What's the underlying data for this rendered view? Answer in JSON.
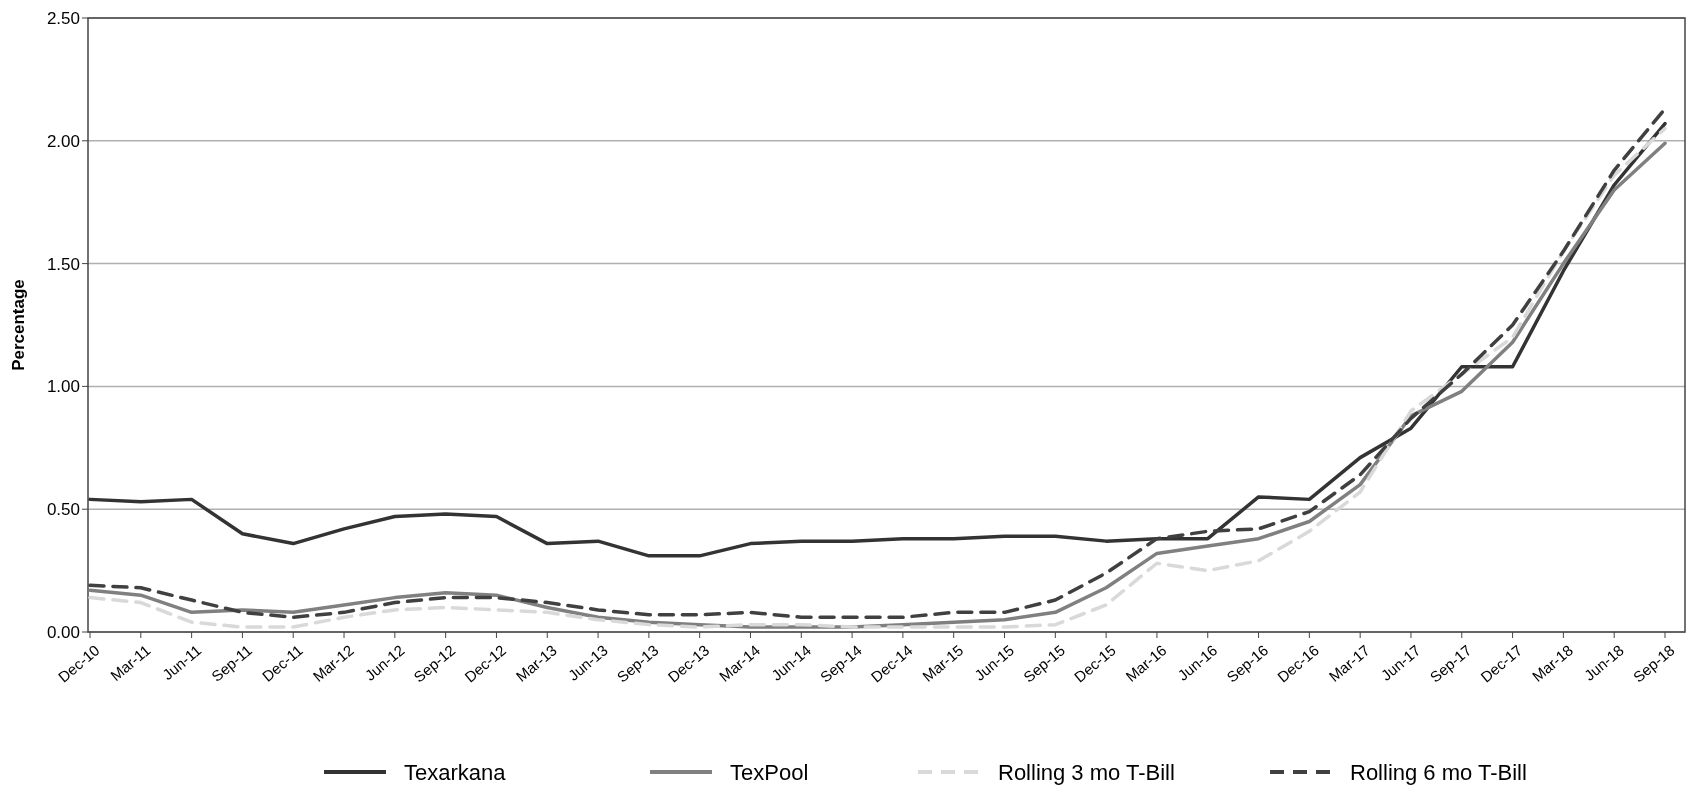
{
  "chart_data": {
    "type": "line",
    "ylabel": "Percentage",
    "categories": [
      "Dec-10",
      "Mar-11",
      "Jun-11",
      "Sep-11",
      "Dec-11",
      "Mar-12",
      "Jun-12",
      "Sep-12",
      "Dec-12",
      "Mar-13",
      "Jun-13",
      "Sep-13",
      "Dec-13",
      "Mar-14",
      "Jun-14",
      "Sep-14",
      "Dec-14",
      "Mar-15",
      "Jun-15",
      "Sep-15",
      "Dec-15",
      "Mar-16",
      "Jun-16",
      "Sep-16",
      "Dec-16",
      "Mar-17",
      "Jun-17",
      "Sep-17",
      "Dec-17",
      "Mar-18",
      "Jun-18",
      "Sep-18"
    ],
    "series": [
      {
        "name": "Texarkana",
        "color": "#333333",
        "line_style": "solid",
        "values": [
          0.54,
          0.53,
          0.54,
          0.4,
          0.36,
          0.42,
          0.47,
          0.48,
          0.47,
          0.36,
          0.37,
          0.31,
          0.31,
          0.36,
          0.37,
          0.37,
          0.38,
          0.38,
          0.39,
          0.39,
          0.37,
          0.38,
          0.38,
          0.55,
          0.54,
          0.71,
          0.83,
          1.08,
          1.08,
          1.47,
          1.82,
          2.07
        ]
      },
      {
        "name": "TexPool",
        "color": "#808080",
        "line_style": "solid",
        "values": [
          0.17,
          0.15,
          0.08,
          0.09,
          0.08,
          0.11,
          0.14,
          0.16,
          0.15,
          0.1,
          0.06,
          0.04,
          0.03,
          0.02,
          0.02,
          0.02,
          0.03,
          0.04,
          0.05,
          0.08,
          0.18,
          0.32,
          0.35,
          0.38,
          0.45,
          0.6,
          0.88,
          0.98,
          1.18,
          1.5,
          1.8,
          1.99
        ]
      },
      {
        "name": "Rolling 3 mo T-Bill",
        "color": "#d9d9d9",
        "line_style": "dashed",
        "values": [
          0.14,
          0.12,
          0.04,
          0.02,
          0.02,
          0.06,
          0.09,
          0.1,
          0.09,
          0.08,
          0.05,
          0.03,
          0.02,
          0.03,
          0.03,
          0.02,
          0.02,
          0.02,
          0.02,
          0.03,
          0.11,
          0.28,
          0.25,
          0.29,
          0.41,
          0.57,
          0.9,
          1.05,
          1.2,
          1.55,
          1.86,
          2.05
        ]
      },
      {
        "name": "Rolling 6 mo T-Bill",
        "color": "#404040",
        "line_style": "dashed",
        "values": [
          0.19,
          0.18,
          0.13,
          0.08,
          0.06,
          0.08,
          0.12,
          0.14,
          0.14,
          0.12,
          0.09,
          0.07,
          0.07,
          0.08,
          0.06,
          0.06,
          0.06,
          0.08,
          0.08,
          0.13,
          0.24,
          0.38,
          0.41,
          0.42,
          0.49,
          0.64,
          0.87,
          1.05,
          1.25,
          1.55,
          1.88,
          2.13
        ]
      }
    ],
    "ylim": [
      0,
      2.5
    ],
    "yticks": [
      {
        "value": 0,
        "label": "0.00"
      },
      {
        "value": 0.5,
        "label": "0.50"
      },
      {
        "value": 1,
        "label": "1.00"
      },
      {
        "value": 1.5,
        "label": "1.50"
      },
      {
        "value": 2,
        "label": "2.00"
      },
      {
        "value": 2.5,
        "label": "2.50"
      }
    ],
    "grid": "y",
    "legend": "bottom",
    "marker": "none"
  }
}
